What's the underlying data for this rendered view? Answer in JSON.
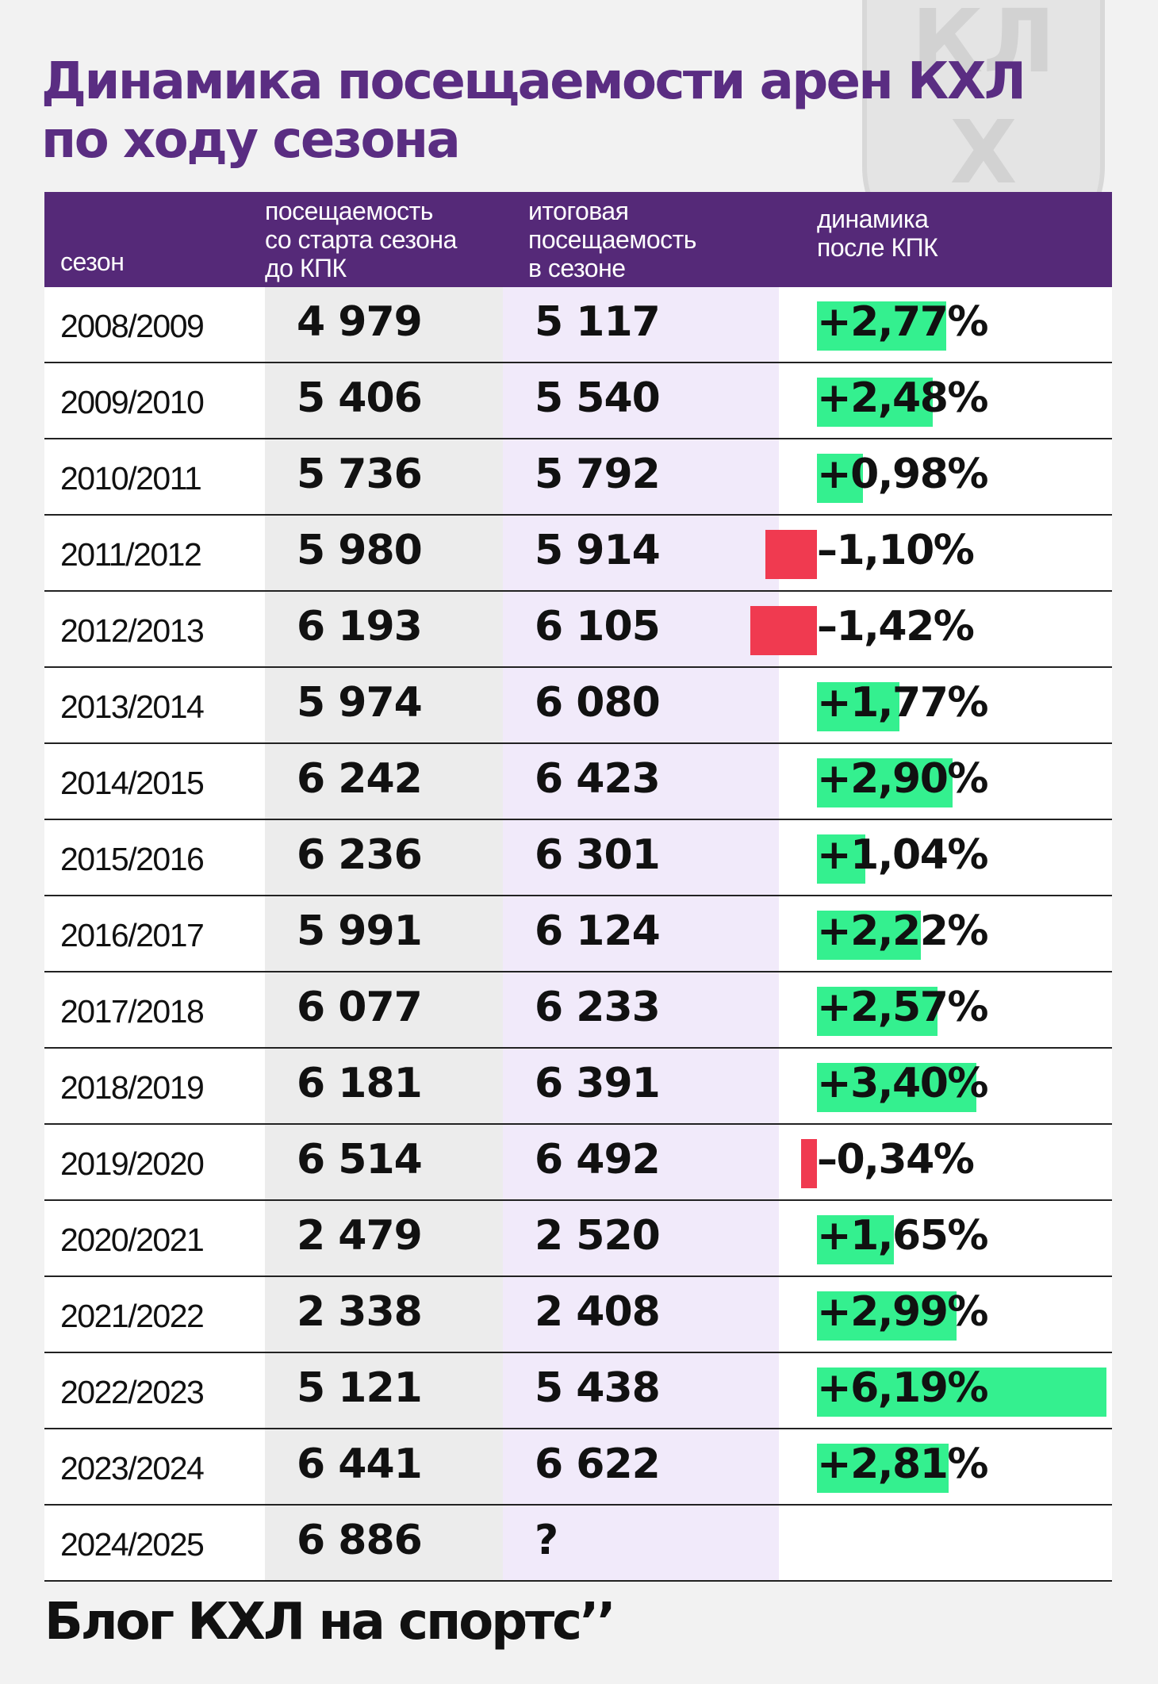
{
  "title_lines": [
    "Динамика посещаемости арен КХЛ",
    "по ходу сезона"
  ],
  "watermark": {
    "letters": [
      "К",
      "Х",
      "Л"
    ],
    "icon": "khl-logo-shield"
  },
  "colors": {
    "title": "#5a2d82",
    "header_bg": "#552978",
    "positive": "#34f08f",
    "negative": "#f03a50",
    "final_column_bg": "#f1eafa"
  },
  "footer": "Блог КХЛ на спортс’’",
  "chart_data": {
    "type": "table",
    "columns": [
      "сезон",
      "посещаемость\nсо старта сезона\nдо КПК",
      "итоговая\nпосещаемость\nв сезоне",
      "динамика\nпосле КПК"
    ],
    "rows": [
      {
        "season": "2008/2009",
        "before": "4 979",
        "final": "5 117",
        "change": "+2,77%",
        "change_value": 2.77
      },
      {
        "season": "2009/2010",
        "before": "5 406",
        "final": "5 540",
        "change": "+2,48%",
        "change_value": 2.48
      },
      {
        "season": "2010/2011",
        "before": "5 736",
        "final": "5 792",
        "change": "+0,98%",
        "change_value": 0.98
      },
      {
        "season": "2011/2012",
        "before": "5 980",
        "final": "5 914",
        "change": "–1,10%",
        "change_value": -1.1
      },
      {
        "season": "2012/2013",
        "before": "6 193",
        "final": "6 105",
        "change": "–1,42%",
        "change_value": -1.42
      },
      {
        "season": "2013/2014",
        "before": "5 974",
        "final": "6 080",
        "change": "+1,77%",
        "change_value": 1.77
      },
      {
        "season": "2014/2015",
        "before": "6 242",
        "final": "6 423",
        "change": "+2,90%",
        "change_value": 2.9
      },
      {
        "season": "2015/2016",
        "before": "6 236",
        "final": "6 301",
        "change": "+1,04%",
        "change_value": 1.04
      },
      {
        "season": "2016/2017",
        "before": "5 991",
        "final": "6 124",
        "change": "+2,22%",
        "change_value": 2.22
      },
      {
        "season": "2017/2018",
        "before": "6 077",
        "final": "6 233",
        "change": "+2,57%",
        "change_value": 2.57
      },
      {
        "season": "2018/2019",
        "before": "6 181",
        "final": "6 391",
        "change": "+3,40%",
        "change_value": 3.4
      },
      {
        "season": "2019/2020",
        "before": "6 514",
        "final": "6 492",
        "change": "–0,34%",
        "change_value": -0.34
      },
      {
        "season": "2020/2021",
        "before": "2 479",
        "final": "2 520",
        "change": "+1,65%",
        "change_value": 1.65
      },
      {
        "season": "2021/2022",
        "before": "2 338",
        "final": "2 408",
        "change": "+2,99%",
        "change_value": 2.99
      },
      {
        "season": "2022/2023",
        "before": "5 121",
        "final": "5 438",
        "change": "+6,19%",
        "change_value": 6.19
      },
      {
        "season": "2023/2024",
        "before": "6 441",
        "final": "6 622",
        "change": "+2,81%",
        "change_value": 2.81
      },
      {
        "season": "2024/2025",
        "before": "6 886",
        "final": "?",
        "change": "",
        "change_value": null
      }
    ]
  }
}
